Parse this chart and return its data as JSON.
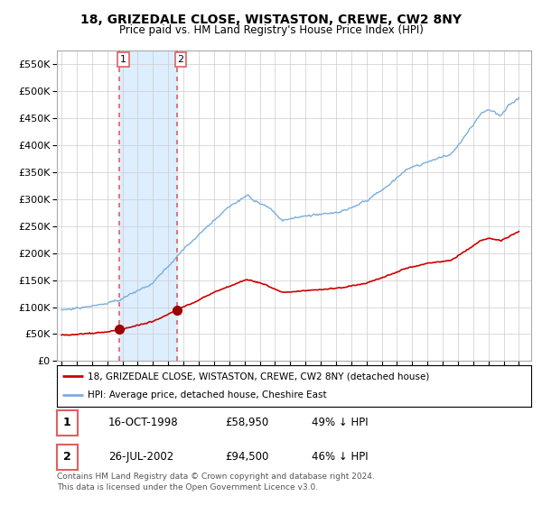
{
  "title_line1": "18, GRIZEDALE CLOSE, WISTASTON, CREWE, CW2 8NY",
  "title_line2": "Price paid vs. HM Land Registry's House Price Index (HPI)",
  "background_color": "#ffffff",
  "plot_bg_color": "#ffffff",
  "grid_color": "#cccccc",
  "sale1_year": 1998.79,
  "sale1_price": 58950,
  "sale2_year": 2002.56,
  "sale2_price": 94500,
  "legend_sale": "18, GRIZEDALE CLOSE, WISTASTON, CREWE, CW2 8NY (detached house)",
  "legend_hpi": "HPI: Average price, detached house, Cheshire East",
  "table_row1": [
    "1",
    "16-OCT-1998",
    "£58,950",
    "49% ↓ HPI"
  ],
  "table_row2": [
    "2",
    "26-JUL-2002",
    "£94,500",
    "46% ↓ HPI"
  ],
  "footer": "Contains HM Land Registry data © Crown copyright and database right 2024.\nThis data is licensed under the Open Government Licence v3.0.",
  "ylim": [
    0,
    575000
  ],
  "yticks": [
    0,
    50000,
    100000,
    150000,
    200000,
    250000,
    300000,
    350000,
    400000,
    450000,
    500000,
    550000
  ],
  "sale_line_color": "#cc0000",
  "hpi_line_color": "#7aaddb",
  "sale_dot_color": "#990000",
  "vline_color": "#e06060",
  "span_color": "#ddeeff",
  "xlim_left": 1994.7,
  "xlim_right": 2025.8
}
